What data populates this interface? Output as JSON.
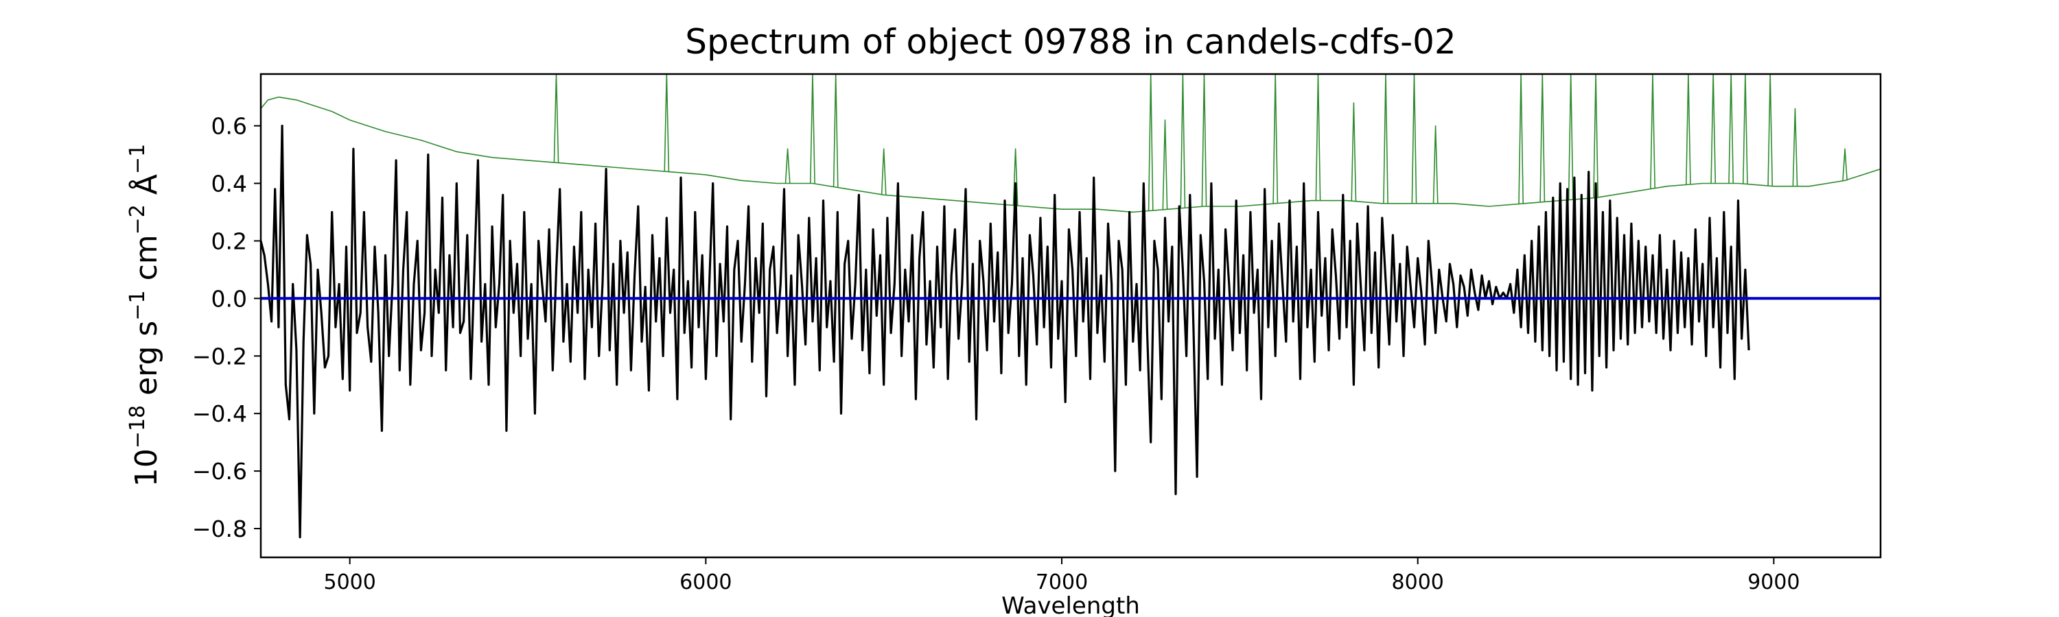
{
  "chart_data": {
    "type": "line",
    "title": "Spectrum of object 09788 in candels-cdfs-02",
    "xlabel": "Wavelength",
    "ylabel": {
      "base": "10",
      "exp": "−18",
      "unit1": " erg s",
      "exp1": "−1",
      "unit2": " cm",
      "exp2": "−2",
      "unit3": " Å",
      "exp3": "−1"
    },
    "xlim": [
      4750,
      9300
    ],
    "ylim": [
      -0.9,
      0.78
    ],
    "xticks": [
      5000,
      6000,
      7000,
      8000,
      9000
    ],
    "yticks": [
      -0.8,
      -0.6,
      -0.4,
      -0.2,
      0.0,
      0.2,
      0.4,
      0.6
    ],
    "ytick_labels": [
      "−0.8",
      "−0.6",
      "−0.4",
      "−0.2",
      "0.0",
      "0.2",
      "0.4",
      "0.6"
    ],
    "grid": false,
    "series": [
      {
        "role": "noise",
        "color": "#2e8b2e",
        "x": [
          4750,
          4770,
          4800,
          4850,
          4900,
          4950,
          5000,
          5100,
          5200,
          5300,
          5400,
          5500,
          5600,
          5700,
          5800,
          5900,
          6000,
          6100,
          6200,
          6300,
          6400,
          6500,
          6600,
          6700,
          6800,
          6900,
          7000,
          7100,
          7200,
          7300,
          7400,
          7500,
          7600,
          7700,
          7800,
          7900,
          8000,
          8100,
          8200,
          8300,
          8400,
          8500,
          8600,
          8700,
          8800,
          8900,
          9000,
          9100,
          9200,
          9300
        ],
        "y": [
          0.66,
          0.69,
          0.7,
          0.69,
          0.67,
          0.65,
          0.62,
          0.58,
          0.55,
          0.51,
          0.49,
          0.48,
          0.47,
          0.46,
          0.45,
          0.44,
          0.43,
          0.41,
          0.4,
          0.4,
          0.38,
          0.36,
          0.35,
          0.34,
          0.33,
          0.32,
          0.31,
          0.31,
          0.3,
          0.31,
          0.32,
          0.32,
          0.33,
          0.34,
          0.34,
          0.33,
          0.33,
          0.33,
          0.32,
          0.33,
          0.34,
          0.35,
          0.37,
          0.39,
          0.4,
          0.4,
          0.39,
          0.39,
          0.41,
          0.45
        ],
        "spikes": [
          [
            5580,
            0.78
          ],
          [
            5890,
            0.78
          ],
          [
            6300,
            0.78
          ],
          [
            6365,
            0.78
          ],
          [
            6230,
            0.52
          ],
          [
            6500,
            0.52
          ],
          [
            6870,
            0.52
          ],
          [
            7250,
            0.78
          ],
          [
            7290,
            0.62
          ],
          [
            7340,
            0.78
          ],
          [
            7400,
            0.78
          ],
          [
            7600,
            0.78
          ],
          [
            7720,
            0.78
          ],
          [
            7820,
            0.68
          ],
          [
            7910,
            0.78
          ],
          [
            7990,
            0.78
          ],
          [
            8050,
            0.6
          ],
          [
            8290,
            0.78
          ],
          [
            8350,
            0.78
          ],
          [
            8430,
            0.78
          ],
          [
            8500,
            0.78
          ],
          [
            8660,
            0.78
          ],
          [
            8760,
            0.78
          ],
          [
            8830,
            0.78
          ],
          [
            8880,
            0.78
          ],
          [
            8920,
            0.78
          ],
          [
            8990,
            0.78
          ],
          [
            9060,
            0.66
          ],
          [
            9200,
            0.52
          ]
        ]
      },
      {
        "role": "flux",
        "color": "#000000",
        "x_start": 4750,
        "x_step": 10,
        "y": [
          0.2,
          0.15,
          0.05,
          -0.08,
          0.38,
          -0.1,
          0.6,
          -0.3,
          -0.42,
          0.05,
          -0.18,
          -0.83,
          -0.15,
          0.22,
          0.12,
          -0.4,
          0.1,
          -0.05,
          -0.24,
          -0.2,
          0.3,
          -0.1,
          0.05,
          -0.28,
          0.18,
          -0.32,
          0.52,
          -0.12,
          -0.05,
          0.3,
          -0.1,
          -0.22,
          0.18,
          -0.05,
          -0.46,
          0.15,
          -0.2,
          0.05,
          0.48,
          -0.25,
          0.1,
          0.3,
          -0.3,
          0.05,
          0.2,
          -0.18,
          -0.05,
          0.5,
          -0.2,
          0.1,
          -0.05,
          0.35,
          -0.25,
          0.15,
          -0.1,
          0.4,
          -0.12,
          -0.08,
          0.22,
          -0.28,
          0.1,
          0.48,
          -0.15,
          0.05,
          -0.3,
          0.25,
          -0.1,
          0.05,
          0.36,
          -0.46,
          0.2,
          -0.05,
          0.12,
          -0.2,
          0.3,
          -0.14,
          0.05,
          -0.4,
          0.2,
          0.05,
          -0.08,
          0.24,
          -0.25,
          0.1,
          0.38,
          -0.15,
          0.05,
          -0.22,
          0.18,
          -0.05,
          0.3,
          -0.28,
          0.1,
          -0.1,
          0.26,
          -0.2,
          0.05,
          0.45,
          -0.18,
          0.12,
          -0.3,
          0.2,
          -0.05,
          0.16,
          -0.25,
          0.08,
          0.32,
          -0.15,
          0.04,
          -0.32,
          0.22,
          -0.08,
          0.14,
          -0.2,
          0.28,
          -0.05,
          0.1,
          -0.35,
          0.42,
          -0.12,
          0.06,
          -0.24,
          0.3,
          -0.1,
          0.15,
          -0.28,
          0.05,
          0.4,
          -0.2,
          0.12,
          -0.08,
          0.25,
          -0.42,
          0.1,
          0.2,
          -0.15,
          0.05,
          0.32,
          -0.22,
          0.14,
          -0.05,
          0.26,
          -0.34,
          0.1,
          0.18,
          -0.12,
          0.05,
          0.38,
          -0.2,
          0.08,
          -0.3,
          0.22,
          0.05,
          -0.16,
          0.28,
          -0.08,
          0.14,
          -0.25,
          0.34,
          -0.1,
          0.06,
          -0.22,
          0.3,
          -0.4,
          0.12,
          0.2,
          -0.14,
          0.05,
          0.36,
          -0.18,
          0.1,
          -0.26,
          0.24,
          -0.06,
          0.15,
          -0.3,
          0.28,
          -0.12,
          0.05,
          0.4,
          -0.2,
          0.1,
          -0.08,
          0.22,
          -0.35,
          0.14,
          0.3,
          -0.16,
          0.06,
          -0.24,
          0.18,
          -0.1,
          0.32,
          -0.28,
          0.08,
          0.24,
          -0.14,
          0.05,
          0.38,
          -0.22,
          0.12,
          -0.42,
          0.2,
          0.06,
          -0.18,
          0.26,
          -0.08,
          0.16,
          -0.26,
          0.34,
          -0.12,
          0.05,
          0.4,
          -0.2,
          0.14,
          -0.3,
          0.22,
          0.08,
          -0.16,
          0.28,
          -0.1,
          0.18,
          -0.24,
          0.36,
          -0.14,
          0.06,
          -0.36,
          0.24,
          0.1,
          -0.2,
          0.3,
          -0.08,
          0.14,
          -0.28,
          0.42,
          -0.12,
          0.08,
          -0.22,
          0.26,
          0.05,
          -0.6,
          0.2,
          0.1,
          -0.3,
          0.3,
          -0.15,
          0.05,
          -0.25,
          0.4,
          -0.12,
          -0.5,
          0.2,
          0.1,
          -0.35,
          0.28,
          -0.08,
          0.18,
          -0.68,
          0.32,
          0.1,
          -0.2,
          0.36,
          -0.1,
          -0.62,
          0.22,
          0.06,
          -0.28,
          0.4,
          -0.14,
          0.1,
          -0.3,
          0.24,
          0.05,
          -0.18,
          0.34,
          -0.12,
          0.15,
          -0.25,
          0.3,
          -0.05,
          0.1,
          -0.35,
          0.38,
          -0.1,
          0.2,
          -0.2,
          0.26,
          0.05,
          -0.15,
          0.34,
          -0.08,
          0.18,
          -0.28,
          0.4,
          -0.1,
          0.1,
          -0.22,
          0.3,
          -0.06,
          0.14,
          -0.18,
          0.24,
          0.08,
          -0.14,
          0.36,
          -0.1,
          0.2,
          -0.3,
          0.26,
          0.04,
          -0.18,
          0.32,
          -0.12,
          0.16,
          -0.24,
          0.28,
          0.06,
          -0.16,
          0.22,
          -0.08,
          0.12,
          -0.2,
          0.18,
          0.04,
          -0.1,
          0.14,
          0.02,
          -0.16,
          0.2,
          0.05,
          -0.12,
          0.1,
          0.0,
          -0.08,
          0.12,
          0.05,
          -0.1,
          0.08,
          0.04,
          -0.06,
          0.1,
          0.02,
          -0.04,
          0.08,
          0.0,
          0.06,
          -0.02,
          0.04,
          0.0,
          0.02,
          0.0,
          0.05,
          -0.05,
          0.1,
          -0.1,
          0.15,
          -0.12,
          0.2,
          -0.15,
          0.25,
          -0.18,
          0.3,
          -0.2,
          0.35,
          -0.25,
          0.4,
          -0.22,
          0.38,
          -0.28,
          0.42,
          -0.3,
          0.36,
          -0.26,
          0.44,
          -0.32,
          0.4,
          -0.2,
          0.3,
          -0.24,
          0.34,
          -0.18,
          0.28,
          -0.14,
          0.22,
          -0.16,
          0.26,
          -0.12,
          0.2,
          -0.1,
          0.18,
          -0.08,
          0.15,
          -0.12,
          0.22,
          -0.14,
          0.1,
          -0.18,
          0.2,
          -0.12,
          0.16,
          -0.1,
          0.14,
          -0.16,
          0.24,
          -0.08,
          0.12,
          -0.2,
          0.28,
          -0.1,
          0.14,
          -0.24,
          0.3,
          -0.12,
          0.18,
          -0.28,
          0.34,
          -0.14,
          0.1,
          -0.18
        ]
      },
      {
        "role": "model",
        "color": "#0000cc",
        "x": [
          4750,
          9300
        ],
        "y": [
          0.0,
          0.0
        ]
      }
    ]
  }
}
